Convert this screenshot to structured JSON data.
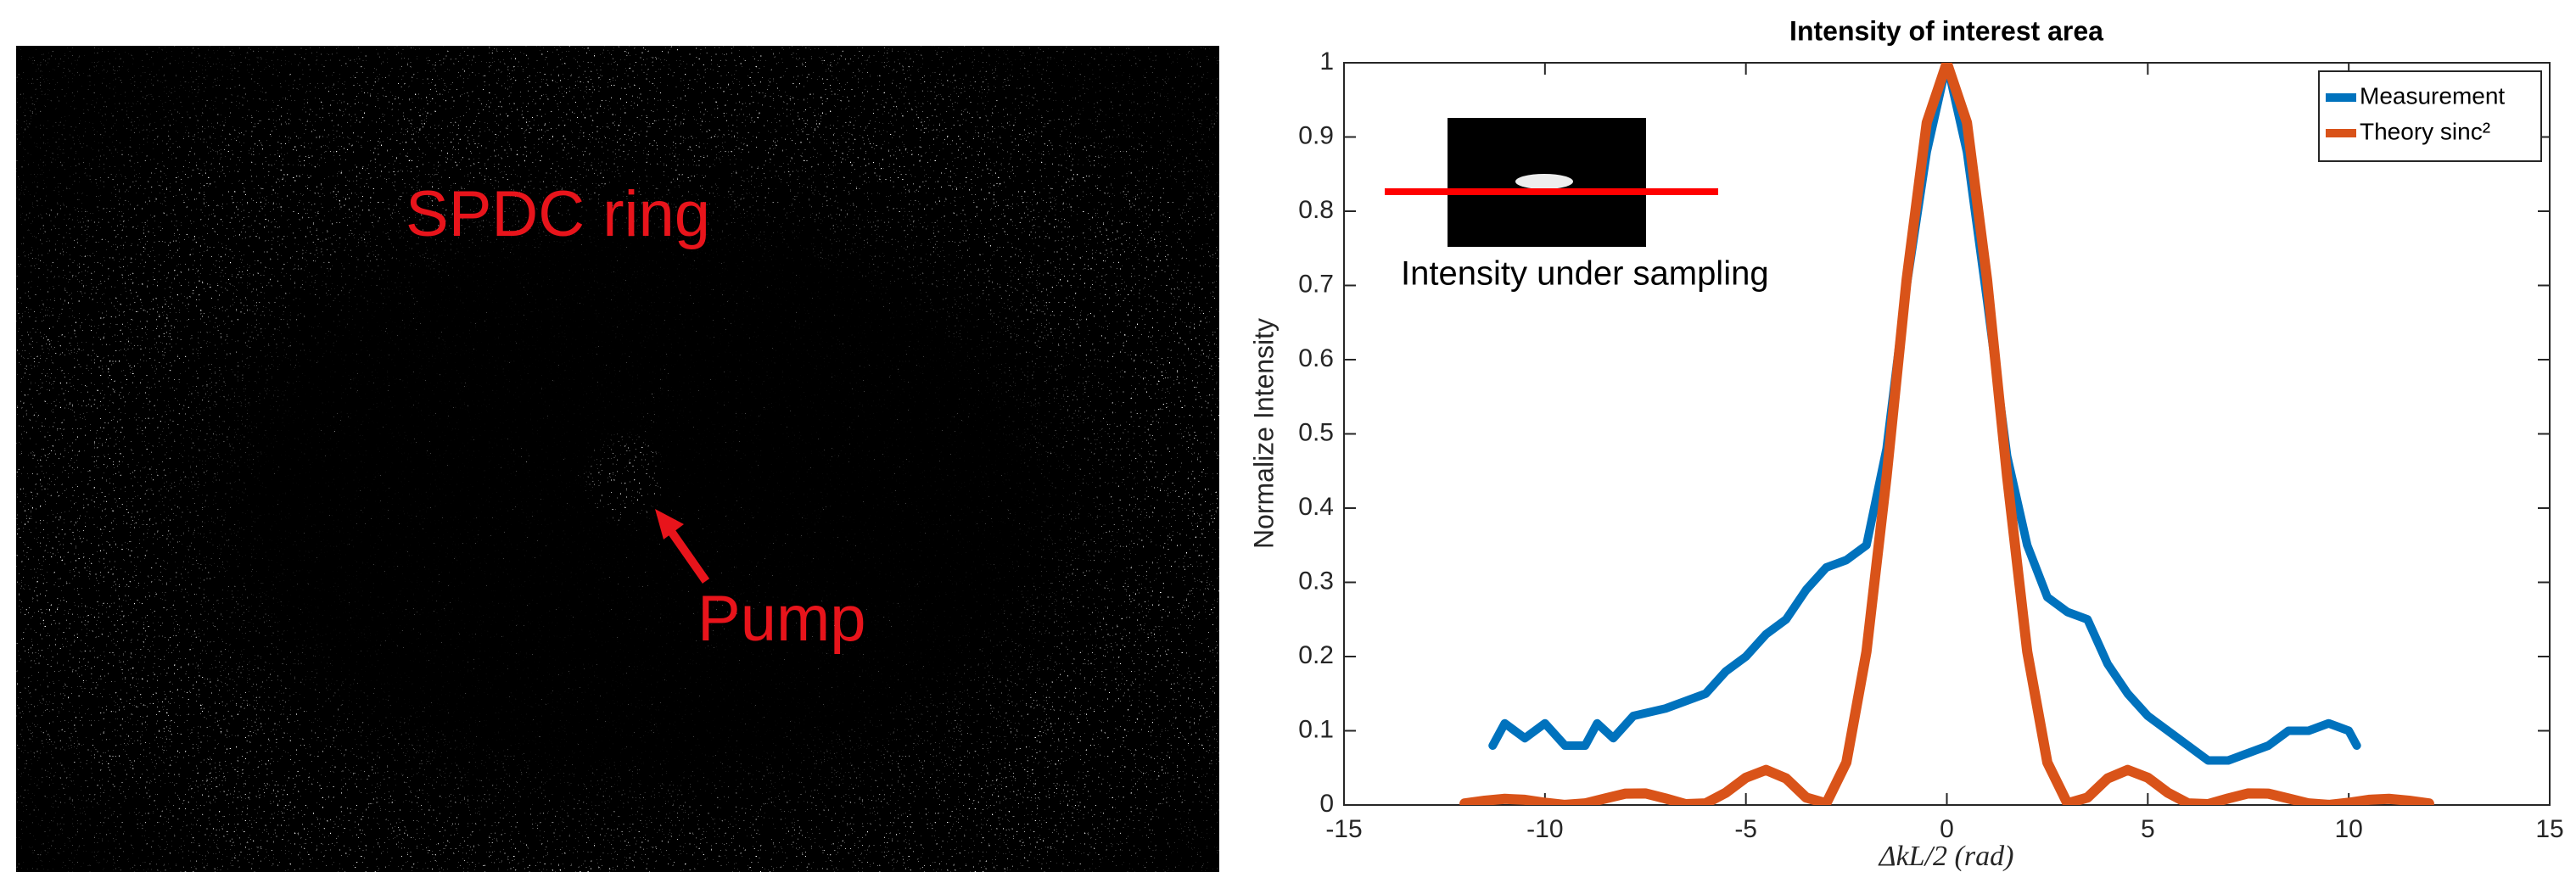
{
  "image_panel": {
    "annotations": [
      "SPDC ring",
      "Pump"
    ]
  },
  "chart_data": {
    "type": "line",
    "title": "Intensity of interest area",
    "xlabel": "ΔkL/2 (rad)",
    "ylabel": "Normalize Intensity",
    "annotations": [
      "Intensity under sampling"
    ],
    "xlim": [
      -15,
      15
    ],
    "ylim": [
      0,
      1
    ],
    "xticks": [
      -15,
      -10,
      -5,
      0,
      5,
      10,
      15
    ],
    "yticks": [
      0,
      0.1,
      0.2,
      0.3,
      0.4,
      0.5,
      0.6,
      0.7,
      0.8,
      0.9,
      1
    ],
    "grid": false,
    "legend": "upper right",
    "series": [
      {
        "name": "Measurement",
        "color": "#0072bd",
        "x": [
          -11.3,
          -11.0,
          -10.5,
          -10.0,
          -9.5,
          -9.0,
          -8.7,
          -8.3,
          -7.8,
          -7.0,
          -6.5,
          -6.0,
          -5.5,
          -5.0,
          -4.5,
          -4.0,
          -3.5,
          -3.0,
          -2.5,
          -2.0,
          -1.5,
          -1.0,
          -0.5,
          0,
          0.5,
          1.0,
          1.5,
          2.0,
          2.5,
          3.0,
          3.5,
          4.0,
          4.5,
          5.0,
          5.5,
          6.0,
          6.5,
          7.0,
          7.5,
          8.0,
          8.5,
          9.0,
          9.5,
          10.0,
          10.2
        ],
        "values": [
          0.08,
          0.11,
          0.09,
          0.11,
          0.08,
          0.08,
          0.11,
          0.09,
          0.12,
          0.13,
          0.14,
          0.15,
          0.18,
          0.2,
          0.23,
          0.25,
          0.29,
          0.32,
          0.33,
          0.35,
          0.48,
          0.7,
          0.88,
          1.0,
          0.88,
          0.68,
          0.47,
          0.35,
          0.28,
          0.26,
          0.25,
          0.19,
          0.15,
          0.12,
          0.1,
          0.08,
          0.06,
          0.06,
          0.07,
          0.08,
          0.1,
          0.1,
          0.11,
          0.1,
          0.08
        ]
      },
      {
        "name": "Theory sinc²",
        "color": "#d95319",
        "x": [
          -12,
          -11.5,
          -11,
          -10.5,
          -10,
          -9.5,
          -9,
          -8.5,
          -8,
          -7.5,
          -7,
          -6.5,
          -6,
          -5.5,
          -5,
          -4.5,
          -4,
          -3.5,
          -3,
          -2.5,
          -2,
          -1.5,
          -1,
          -0.5,
          0,
          0.5,
          1,
          1.5,
          2,
          2.5,
          3,
          3.5,
          4,
          4.5,
          5,
          5.5,
          6,
          6.5,
          7,
          7.5,
          8,
          8.5,
          9,
          9.5,
          10,
          10.5,
          11,
          11.5,
          12
        ],
        "values": [
          0.002,
          0.0058,
          0.0083,
          0.007,
          0.003,
          0.0001,
          0.0021,
          0.0088,
          0.0153,
          0.0156,
          0.0088,
          0.0011,
          0.0022,
          0.0165,
          0.0368,
          0.0472,
          0.0358,
          0.01,
          0.0022,
          0.0573,
          0.2067,
          0.4422,
          0.7081,
          0.9194,
          1,
          0.9194,
          0.7081,
          0.4422,
          0.2067,
          0.0573,
          0.0022,
          0.01,
          0.0358,
          0.0472,
          0.0368,
          0.0165,
          0.0022,
          0.0011,
          0.0088,
          0.0156,
          0.0153,
          0.0088,
          0.0021,
          0.0001,
          0.003,
          0.007,
          0.0083,
          0.0058,
          0.002
        ]
      }
    ]
  }
}
